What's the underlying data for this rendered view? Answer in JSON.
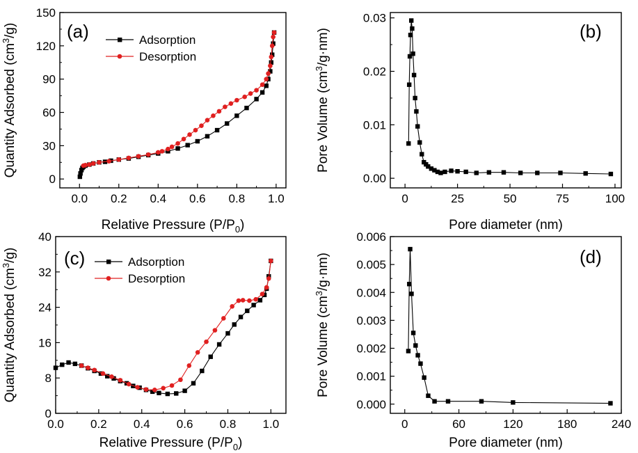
{
  "colors": {
    "adsorption": "#000000",
    "desorption": "#e02020"
  },
  "chart_data": [
    {
      "panel": "(a)",
      "type": "line",
      "xlabel": "Relative Pressure (P/P",
      "xlabel_sub": "0",
      "xlabel_tail": ")",
      "ylabel": "Quantity Adsorbed (cm",
      "ylabel_sup": "3",
      "ylabel_tail": "/g)",
      "xlim": [
        -0.1,
        1.05
      ],
      "ylim": [
        -8,
        150
      ],
      "xticks": [
        0.0,
        0.2,
        0.4,
        0.6,
        0.8,
        1.0
      ],
      "xtick_labels": [
        "0.0",
        "0.2",
        "0.4",
        "0.6",
        "0.8",
        "1.0"
      ],
      "yticks": [
        0,
        30,
        60,
        90,
        120,
        150
      ],
      "ytick_labels": [
        "0",
        "30",
        "60",
        "90",
        "120",
        "150"
      ],
      "legend": {
        "position": "top-left",
        "labels": [
          "Adsorption",
          "Desorption"
        ]
      },
      "series": [
        {
          "name": "Adsorption",
          "color": "#000000",
          "marker": "square",
          "x": [
            0.002,
            0.005,
            0.01,
            0.015,
            0.02,
            0.03,
            0.05,
            0.07,
            0.1,
            0.13,
            0.16,
            0.2,
            0.25,
            0.3,
            0.35,
            0.4,
            0.45,
            0.5,
            0.55,
            0.6,
            0.65,
            0.7,
            0.75,
            0.8,
            0.85,
            0.9,
            0.93,
            0.95,
            0.96,
            0.97,
            0.975,
            0.98,
            0.985,
            0.99
          ],
          "y": [
            2,
            5,
            8,
            10,
            11,
            12,
            13,
            14,
            15,
            15.5,
            16.5,
            17.5,
            18.5,
            20,
            21.5,
            23,
            25,
            27.5,
            30.5,
            34,
            38.5,
            44,
            50,
            57,
            64,
            72,
            78,
            84,
            90,
            97,
            105,
            112,
            122,
            132
          ]
        },
        {
          "name": "Desorption",
          "color": "#e02020",
          "marker": "circle",
          "x": [
            0.99,
            0.985,
            0.98,
            0.975,
            0.97,
            0.96,
            0.95,
            0.93,
            0.9,
            0.87,
            0.84,
            0.8,
            0.77,
            0.74,
            0.71,
            0.68,
            0.65,
            0.62,
            0.59,
            0.56,
            0.53,
            0.5,
            0.47,
            0.45,
            0.42,
            0.4,
            0.35,
            0.3,
            0.25,
            0.2,
            0.15,
            0.1,
            0.07,
            0.05,
            0.03,
            0.02
          ],
          "y": [
            132,
            128,
            120,
            110,
            102,
            95,
            90,
            85,
            80,
            77,
            74,
            71,
            68,
            65,
            61,
            57,
            53,
            48,
            44,
            40,
            36,
            32,
            29,
            27,
            25,
            24,
            22,
            20.5,
            19,
            17.5,
            16,
            15,
            14,
            13,
            12.5,
            12
          ]
        }
      ]
    },
    {
      "panel": "(b)",
      "type": "line",
      "xlabel": "Pore diameter (nm)",
      "ylabel": "Pore Volume (cm",
      "ylabel_sup": "3",
      "ylabel_tail": "/g·nm)",
      "xlim": [
        -7,
        103
      ],
      "ylim": [
        -0.0018,
        0.031
      ],
      "xticks": [
        0,
        25,
        50,
        75,
        100
      ],
      "xtick_labels": [
        "0",
        "25",
        "50",
        "75",
        "100"
      ],
      "yticks": [
        0.0,
        0.01,
        0.02,
        0.03
      ],
      "ytick_labels": [
        "0.00",
        "0.01",
        "0.02",
        "0.03"
      ],
      "series": [
        {
          "name": "",
          "color": "#000000",
          "marker": "square",
          "x": [
            1.7,
            2.0,
            2.3,
            2.6,
            3.0,
            3.4,
            3.8,
            4.3,
            4.8,
            5.4,
            6.0,
            7.0,
            8.0,
            9.0,
            10.0,
            11.0,
            12.5,
            14.0,
            15.5,
            17.0,
            19.0,
            22.0,
            25.0,
            29.0,
            34.0,
            40.0,
            47.0,
            55.0,
            63.0,
            74.0,
            86.0,
            98.0
          ],
          "y": [
            0.0065,
            0.0175,
            0.0228,
            0.0268,
            0.0295,
            0.028,
            0.0233,
            0.0193,
            0.015,
            0.0125,
            0.0097,
            0.0067,
            0.0045,
            0.003,
            0.0026,
            0.0022,
            0.0018,
            0.0015,
            0.0012,
            0.001,
            0.0012,
            0.0014,
            0.0013,
            0.0012,
            0.001,
            0.0011,
            0.0011,
            0.001,
            0.001,
            0.001,
            0.0009,
            0.0008
          ]
        }
      ]
    },
    {
      "panel": "(c)",
      "type": "line",
      "xlabel": "Relative Pressure (P/P",
      "xlabel_sub": "0",
      "xlabel_tail": ")",
      "ylabel": "Quantity Adsorbed (cm",
      "ylabel_sup": "3",
      "ylabel_tail": "/g)",
      "xlim": [
        0.0,
        1.07
      ],
      "ylim": [
        0,
        40
      ],
      "xticks": [
        0.0,
        0.2,
        0.4,
        0.6,
        0.8,
        1.0
      ],
      "xtick_labels": [
        "0.0",
        "0.2",
        "0.4",
        "0.6",
        "0.8",
        "1.0"
      ],
      "yticks": [
        0,
        8,
        16,
        24,
        32,
        40
      ],
      "ytick_labels": [
        "0",
        "8",
        "16",
        "24",
        "32",
        "40"
      ],
      "legend": {
        "position": "top-center",
        "labels": [
          "Adsorption",
          "Desorption"
        ]
      },
      "series": [
        {
          "name": "Adsorption",
          "color": "#000000",
          "marker": "square",
          "x": [
            0.0,
            0.03,
            0.06,
            0.09,
            0.12,
            0.15,
            0.18,
            0.21,
            0.24,
            0.27,
            0.3,
            0.33,
            0.36,
            0.39,
            0.42,
            0.45,
            0.48,
            0.52,
            0.56,
            0.6,
            0.64,
            0.68,
            0.72,
            0.76,
            0.8,
            0.83,
            0.86,
            0.89,
            0.92,
            0.95,
            0.97,
            0.98,
            0.99,
            1.0
          ],
          "y": [
            10.3,
            11.0,
            11.5,
            11.2,
            10.8,
            10.2,
            9.6,
            9.0,
            8.4,
            7.9,
            7.3,
            6.8,
            6.2,
            5.8,
            5.3,
            4.9,
            4.6,
            4.4,
            4.5,
            5.1,
            6.8,
            9.6,
            12.8,
            15.6,
            18.1,
            20.1,
            21.8,
            23.2,
            24.5,
            25.6,
            26.8,
            28.2,
            31.0,
            34.5
          ]
        },
        {
          "name": "Desorption",
          "color": "#e02020",
          "marker": "circle",
          "x": [
            1.0,
            0.99,
            0.98,
            0.96,
            0.93,
            0.9,
            0.87,
            0.85,
            0.82,
            0.78,
            0.74,
            0.7,
            0.66,
            0.62,
            0.58,
            0.54,
            0.5,
            0.46,
            0.42,
            0.38,
            0.34,
            0.3,
            0.26,
            0.22,
            0.18,
            0.15,
            0.12
          ],
          "y": [
            34.5,
            30.5,
            28.5,
            27.0,
            25.8,
            25.5,
            25.6,
            25.5,
            24.2,
            21.5,
            18.8,
            16.2,
            13.8,
            10.8,
            7.6,
            6.3,
            5.7,
            5.3,
            5.4,
            5.9,
            6.6,
            7.5,
            8.3,
            9.0,
            9.8,
            10.3,
            10.8
          ]
        }
      ]
    },
    {
      "panel": "(d)",
      "type": "line",
      "xlabel": "Pore diameter (nm)",
      "ylabel": "Pore Volume (cm",
      "ylabel_sup": "3",
      "ylabel_tail": "/g·nm)",
      "xlim": [
        -16,
        240
      ],
      "ylim": [
        -0.00033,
        0.006
      ],
      "xticks": [
        0,
        60,
        120,
        180,
        240
      ],
      "xtick_labels": [
        "0",
        "60",
        "120",
        "180",
        "240"
      ],
      "yticks": [
        0.0,
        0.001,
        0.002,
        0.003,
        0.004,
        0.005,
        0.006
      ],
      "ytick_labels": [
        "0.000",
        "0.001",
        "0.002",
        "0.003",
        "0.004",
        "0.005",
        "0.006"
      ],
      "series": [
        {
          "name": "",
          "color": "#000000",
          "marker": "square",
          "x": [
            4.0,
            5.0,
            6.0,
            7.5,
            9.5,
            12.0,
            14.5,
            17.5,
            21.5,
            26.0,
            33.0,
            48.0,
            85.0,
            120.0,
            228.0
          ],
          "y": [
            0.0019,
            0.0043,
            0.00555,
            0.00395,
            0.00255,
            0.0021,
            0.00175,
            0.00145,
            0.00095,
            0.0003,
            0.0001,
            0.0001,
            0.0001,
            6e-05,
            3e-05
          ]
        }
      ]
    }
  ]
}
